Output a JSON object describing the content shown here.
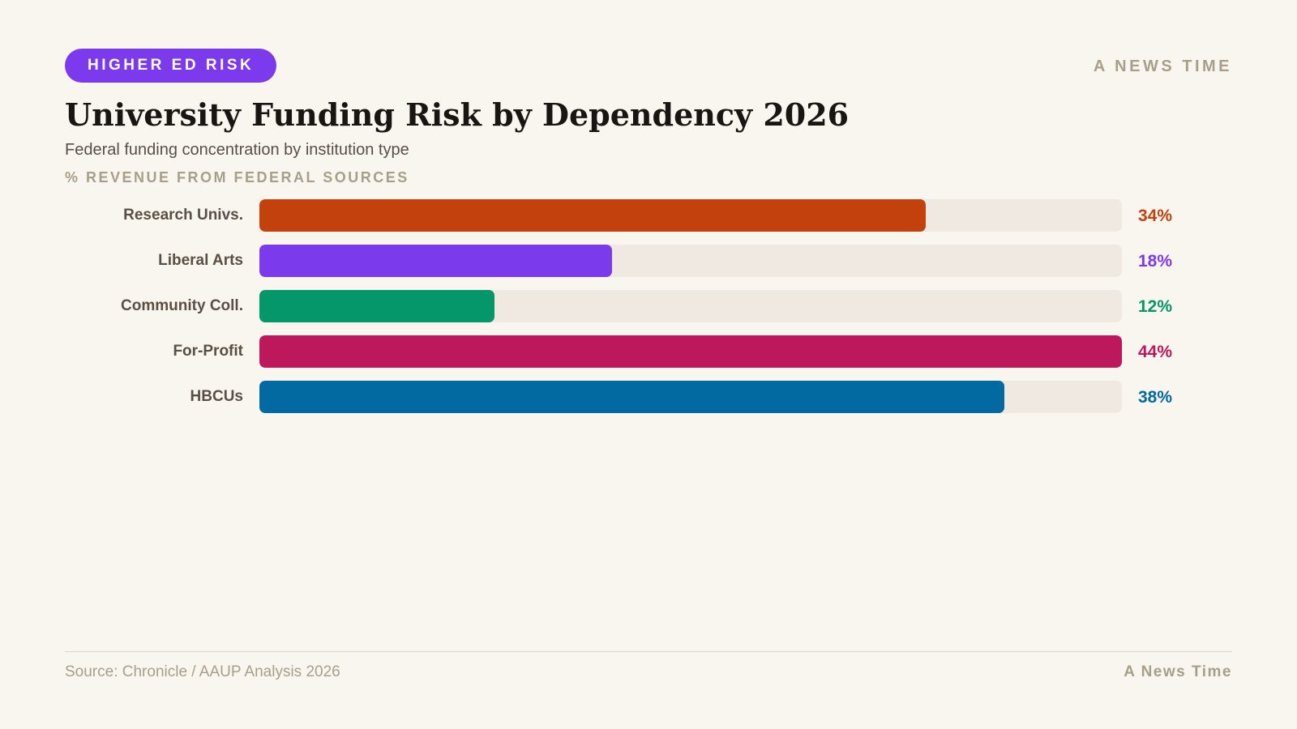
{
  "header": {
    "tag": "HIGHER ED RISK",
    "brand": "A NEWS TIME"
  },
  "chart_data": {
    "type": "bar",
    "orientation": "horizontal",
    "title": "University Funding Risk by Dependency 2026",
    "subtitle": "Federal funding concentration by institution type",
    "unit_label": "% REVENUE FROM FEDERAL SOURCES",
    "categories": [
      "Research Univs.",
      "Liberal Arts",
      "Community Coll.",
      "For-Profit",
      "HBCUs"
    ],
    "values": [
      34,
      18,
      12,
      44,
      38
    ],
    "value_labels": [
      "34%",
      "18%",
      "12%",
      "44%",
      "38%"
    ],
    "colors": [
      "#c2410c",
      "#7c3aed",
      "#059669",
      "#be185d",
      "#0369a1"
    ],
    "track_color": "#efe9e2",
    "xlim": [
      0,
      44
    ]
  },
  "footer": {
    "source": "Source: Chronicle / AAUP Analysis 2026",
    "brand": "A News Time"
  }
}
